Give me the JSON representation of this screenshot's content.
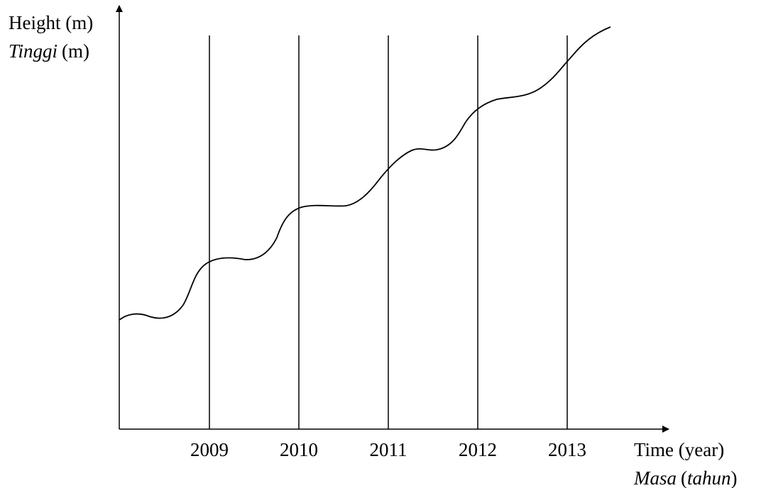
{
  "y_axis": {
    "label": "Height (m)",
    "malay_word": "Tinggi",
    "malay_unit": "(m)"
  },
  "x_axis": {
    "label": "Time (year)",
    "malay_parts": [
      "Masa",
      "(",
      "tahun",
      ")"
    ],
    "years": [
      "2009",
      "2010",
      "2011",
      "2012",
      "2013"
    ]
  }
}
